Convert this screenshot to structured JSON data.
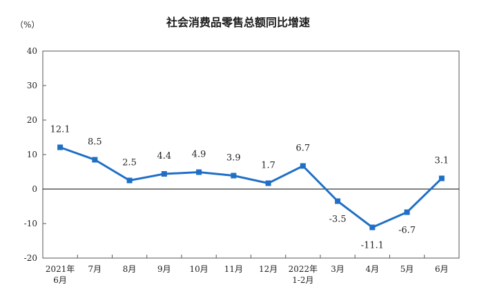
{
  "chart_data": {
    "type": "line",
    "title": "社会消费品零售总额同比增速",
    "unit_label": "（%）",
    "categories": [
      "2021年 6月",
      "7月",
      "8月",
      "9月",
      "10月",
      "11月",
      "12月",
      "2022年 1-2月",
      "3月",
      "4月",
      "5月",
      "6月"
    ],
    "category_lines": [
      [
        "2021年",
        "6月"
      ],
      [
        "7月"
      ],
      [
        "8月"
      ],
      [
        "9月"
      ],
      [
        "10月"
      ],
      [
        "11月"
      ],
      [
        "12月"
      ],
      [
        "2022年",
        "1-2月"
      ],
      [
        "3月"
      ],
      [
        "4月"
      ],
      [
        "5月"
      ],
      [
        "6月"
      ]
    ],
    "values": [
      12.1,
      8.5,
      2.5,
      4.4,
      4.9,
      3.9,
      1.7,
      6.7,
      -3.5,
      -11.1,
      -6.7,
      3.1
    ],
    "data_labels": [
      "12.1",
      "8.5",
      "2.5",
      "4.4",
      "4.9",
      "3.9",
      "1.7",
      "6.7",
      "-3.5",
      "-11.1",
      "-6.7",
      "3.1"
    ],
    "label_positions": [
      "above",
      "above",
      "above",
      "above",
      "above",
      "above",
      "above",
      "above",
      "below",
      "below",
      "below",
      "above"
    ],
    "ylim": [
      -20,
      40
    ],
    "yticks": [
      -20,
      -10,
      0,
      10,
      20,
      30,
      40
    ],
    "ytick_labels": [
      "-20",
      "-10",
      "0",
      "10",
      "20",
      "30",
      "40"
    ],
    "grid": false,
    "legend": "none",
    "line_color": "#1f6fc6",
    "zero_line_color": "#000000"
  }
}
